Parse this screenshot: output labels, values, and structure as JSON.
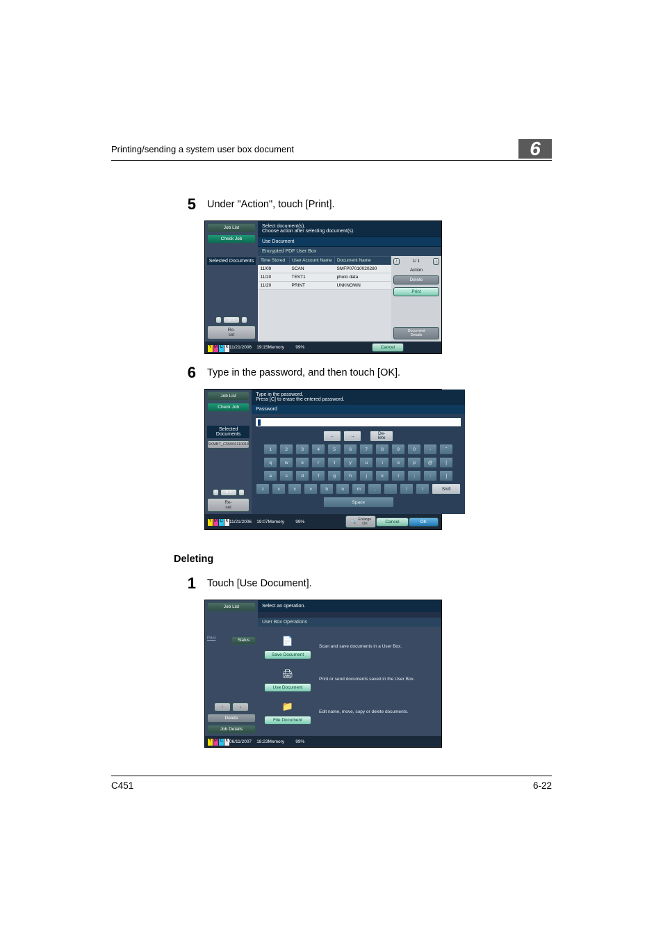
{
  "header": {
    "title": "Printing/sending a system user box document",
    "chapter": "6"
  },
  "steps": {
    "s5": {
      "num": "5",
      "text": "Under \"Action\", touch [Print]."
    },
    "s6": {
      "num": "6",
      "text": "Type in the password, and then touch [OK]."
    },
    "s1": {
      "num": "1",
      "text": "Touch [Use Document]."
    }
  },
  "section": {
    "deleting": "Deleting"
  },
  "panel1": {
    "left": {
      "job_list": "Job List",
      "check_job": "Check Job",
      "selected_documents": "Selected Documents",
      "page": "1/  1",
      "reset": "Re-\nset"
    },
    "top_msg": "Select document(s).\nChoose action after selecting document(s).",
    "tab": "Use Document",
    "subbar": "Encrypted PDF User Box",
    "cols": {
      "time": "Time\nStored",
      "user": "User\nAccount Name",
      "doc": "Document Name"
    },
    "rows": [
      {
        "t": "11/09",
        "u": "SCAN",
        "d": "SMFP07010020280"
      },
      {
        "t": "11/20",
        "u": "TEST1",
        "d": "photo data"
      },
      {
        "t": "11/20",
        "u": "PRINT",
        "d": "UNKNOWN"
      }
    ],
    "right": {
      "page": "1/  1",
      "action": "Action",
      "delete": "Delete",
      "print": "Print",
      "details": "Document\nDetails"
    },
    "status": {
      "datetime": "11/21/2006    19:15",
      "memory": "Memory         99%",
      "cancel": "Cancel"
    }
  },
  "panel2": {
    "left": {
      "job_list": "Job List",
      "check_job": "Check Job",
      "selected_documents": "Selected Documents",
      "doc": "SKMBT_C55006110918",
      "page": "1/  1",
      "reset": "Re-\nset"
    },
    "top_msg": "Type in the password.\nPress [C] to erase the entered password.",
    "password_label": "Password",
    "keys": {
      "row1": [
        "1",
        "2",
        "3",
        "4",
        "5",
        "6",
        "7",
        "8",
        "9",
        "0",
        "-",
        "ˆ"
      ],
      "row2": [
        "q",
        "w",
        "e",
        "r",
        "t",
        "y",
        "u",
        "i",
        "o",
        "p",
        "@",
        "["
      ],
      "row3": [
        "a",
        "s",
        "d",
        "f",
        "g",
        "h",
        "j",
        "k",
        "l",
        ";",
        ":",
        "]"
      ],
      "row4": [
        "z",
        "x",
        "c",
        "v",
        "b",
        "n",
        "m",
        ",",
        ".",
        "/",
        "\\"
      ],
      "space": "Space",
      "shift": "Shift",
      "delete": "De-\nlete",
      "left": "←",
      "right": "→"
    },
    "status": {
      "datetime": "11/21/2006    19:07",
      "memory": "Memory         99%",
      "enlarge": "Enlarge\nOn",
      "cancel": "Cancel",
      "ok": "OK"
    }
  },
  "panel3": {
    "left": {
      "job_list": "Job List",
      "status": "Status",
      "print": "Print",
      "delete": "Delete",
      "job_details": "Job Details"
    },
    "top_msg": "Select an operation.",
    "subbar": "User Box Operations",
    "ops": [
      {
        "btn": "Save Document",
        "desc": "Scan and save documents in a User Box.",
        "icon": "📄"
      },
      {
        "btn": "Use Document",
        "desc": "Print or send documents saved in the User Box.",
        "icon": "🖨"
      },
      {
        "btn": "File Document",
        "desc": "Edit name, move, copy or delete documents.",
        "icon": "📁"
      }
    ],
    "status": {
      "datetime": "06/11/2007    18:23",
      "memory": "Memory         99%"
    }
  },
  "footer": {
    "model": "C451",
    "page": "6-22"
  }
}
